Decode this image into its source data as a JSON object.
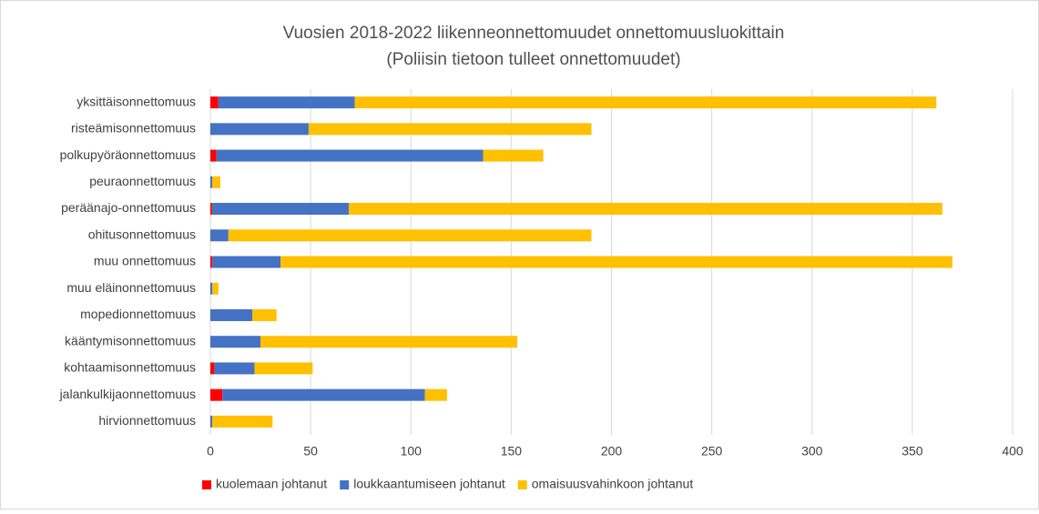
{
  "chart_data": {
    "type": "stacked-bar-horizontal",
    "title": "Vuosien 2018-2022 liikenneonnettomuudet onnettomuusluokittain",
    "subtitle": "(Poliisin tietoon tulleet onnettomuudet)",
    "categories": [
      "yksittäisonnettomuus",
      "risteämisonnettomuus",
      "polkupyöräonnettomuus",
      "peuraonnettomuus",
      "peräänajo-onnettomuus",
      "ohitusonnettomuus",
      "muu onnettomuus",
      "muu eläinonnettomuus",
      "mopedionnettomuus",
      "kääntymisonnettomuus",
      "kohtaamisonnettomuus",
      "jalankulkijaonnettomuus",
      "hirvionnettomuus"
    ],
    "series": [
      {
        "name": "kuolemaan johtanut",
        "color": "#ff0000",
        "values": [
          4,
          0,
          3,
          0,
          1,
          0,
          1,
          0,
          0,
          0,
          2,
          6,
          0
        ]
      },
      {
        "name": "loukkaantumiseen johtanut",
        "color": "#4472c4",
        "values": [
          68,
          49,
          133,
          1,
          68,
          9,
          34,
          1,
          21,
          25,
          20,
          101,
          1
        ]
      },
      {
        "name": "omaisuusvahinkoon johtanut",
        "color": "#ffc000",
        "values": [
          290,
          141,
          30,
          4,
          296,
          181,
          335,
          3,
          12,
          128,
          29,
          11,
          30
        ]
      }
    ],
    "xlim": [
      0,
      400
    ],
    "xticks": [
      0,
      50,
      100,
      150,
      200,
      250,
      300,
      350,
      400
    ],
    "grid": true,
    "legend": "bottom"
  }
}
